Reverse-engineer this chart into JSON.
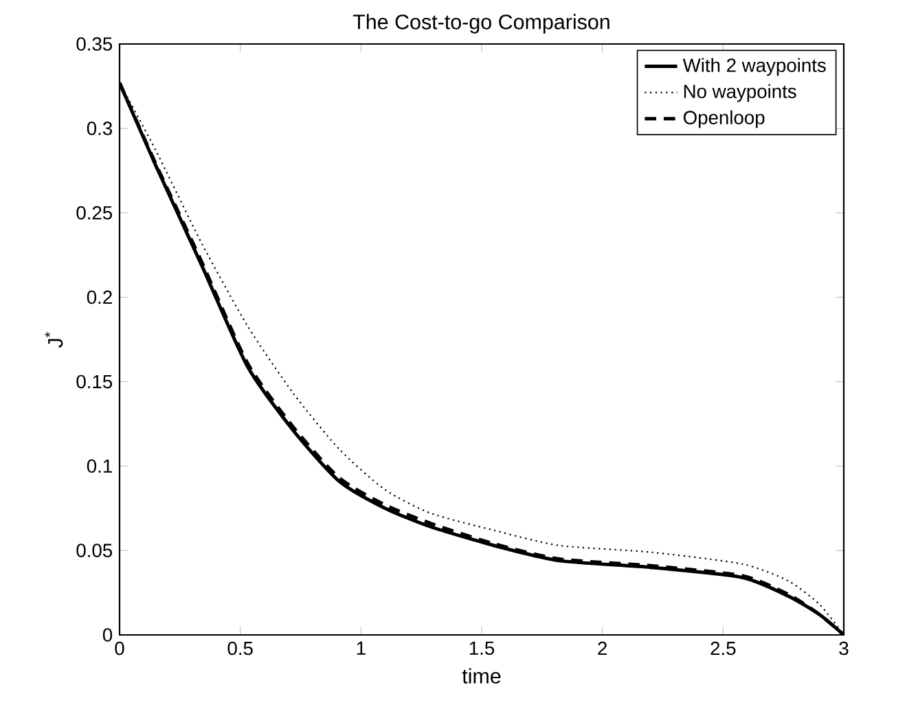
{
  "chart_data": {
    "type": "line",
    "title": "The Cost-to-go Comparison",
    "xlabel": "time",
    "ylabel": "J$^{*}$",
    "xlim": [
      0,
      3
    ],
    "ylim": [
      0,
      0.35
    ],
    "xticks": [
      0,
      0.5,
      1,
      1.5,
      2,
      2.5,
      3
    ],
    "yticks": [
      0,
      0.05,
      0.1,
      0.15,
      0.2,
      0.25,
      0.3,
      0.35
    ],
    "legend": "top right",
    "grid": false,
    "series": [
      {
        "name": "With 2 waypoints",
        "color": "#000000",
        "line_style": "solid",
        "x": [
          0,
          0.15,
          0.34,
          0.53,
          0.72,
          0.91,
          1.1,
          1.29,
          1.55,
          1.82,
          2.2,
          2.58,
          2.77,
          2.9,
          3
        ],
        "values": [
          0.327,
          0.278,
          0.219,
          0.159,
          0.121,
          0.091,
          0.075,
          0.064,
          0.053,
          0.044,
          0.04,
          0.034,
          0.023,
          0.012,
          0
        ]
      },
      {
        "name": "No waypoints",
        "color": "#000000",
        "line_style": "dotted",
        "x": [
          0,
          0.15,
          0.34,
          0.53,
          0.72,
          0.91,
          1.1,
          1.29,
          1.55,
          1.82,
          2.2,
          2.58,
          2.77,
          2.9,
          3
        ],
        "values": [
          0.327,
          0.287,
          0.232,
          0.183,
          0.143,
          0.11,
          0.086,
          0.072,
          0.062,
          0.053,
          0.049,
          0.042,
          0.032,
          0.018,
          0
        ]
      },
      {
        "name": "Openloop",
        "color": "#000000",
        "line_style": "dashed",
        "x": [
          0,
          0.15,
          0.34,
          0.53,
          0.72,
          0.91,
          1.1,
          1.29,
          1.55,
          1.82,
          2.2,
          2.58,
          2.77,
          2.9,
          3
        ],
        "values": [
          0.327,
          0.279,
          0.221,
          0.161,
          0.123,
          0.093,
          0.077,
          0.066,
          0.054,
          0.045,
          0.041,
          0.035,
          0.024,
          0.012,
          0
        ]
      }
    ]
  }
}
